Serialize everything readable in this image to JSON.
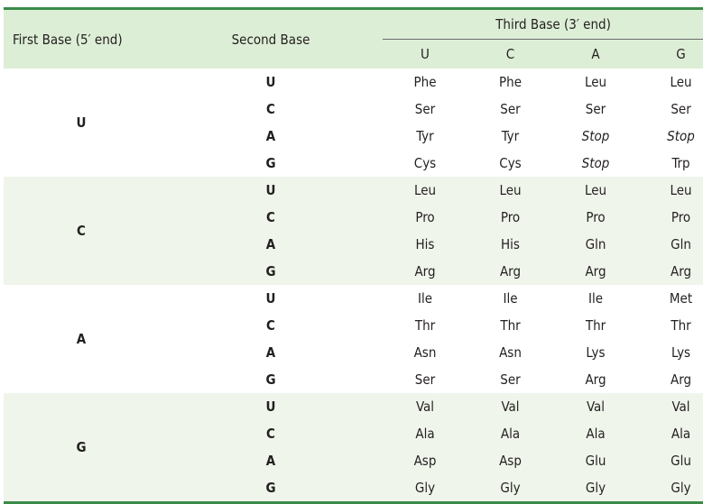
{
  "header": {
    "first_base": "First Base (5′ end)",
    "second_base": "Second Base",
    "third_base": "Third Base (3′ end)",
    "third_columns": [
      "U",
      "C",
      "A",
      "G"
    ]
  },
  "groups": [
    {
      "first": "U",
      "rows": [
        {
          "second": "U",
          "cells": [
            "Phe",
            "Phe",
            "Leu",
            "Leu"
          ]
        },
        {
          "second": "C",
          "cells": [
            "Ser",
            "Ser",
            "Ser",
            "Ser"
          ]
        },
        {
          "second": "A",
          "cells": [
            "Tyr",
            "Tyr",
            "Stop",
            "Stop"
          ]
        },
        {
          "second": "G",
          "cells": [
            "Cys",
            "Cys",
            "Stop",
            "Trp"
          ]
        }
      ]
    },
    {
      "first": "C",
      "rows": [
        {
          "second": "U",
          "cells": [
            "Leu",
            "Leu",
            "Leu",
            "Leu"
          ]
        },
        {
          "second": "C",
          "cells": [
            "Pro",
            "Pro",
            "Pro",
            "Pro"
          ]
        },
        {
          "second": "A",
          "cells": [
            "His",
            "His",
            "Gln",
            "Gln"
          ]
        },
        {
          "second": "G",
          "cells": [
            "Arg",
            "Arg",
            "Arg",
            "Arg"
          ]
        }
      ]
    },
    {
      "first": "A",
      "rows": [
        {
          "second": "U",
          "cells": [
            "Ile",
            "Ile",
            "Ile",
            "Met"
          ]
        },
        {
          "second": "C",
          "cells": [
            "Thr",
            "Thr",
            "Thr",
            "Thr"
          ]
        },
        {
          "second": "A",
          "cells": [
            "Asn",
            "Asn",
            "Lys",
            "Lys"
          ]
        },
        {
          "second": "G",
          "cells": [
            "Ser",
            "Ser",
            "Arg",
            "Arg"
          ]
        }
      ]
    },
    {
      "first": "G",
      "rows": [
        {
          "second": "U",
          "cells": [
            "Val",
            "Val",
            "Val",
            "Val"
          ]
        },
        {
          "second": "C",
          "cells": [
            "Ala",
            "Ala",
            "Ala",
            "Ala"
          ]
        },
        {
          "second": "A",
          "cells": [
            "Asp",
            "Asp",
            "Glu",
            "Glu"
          ]
        },
        {
          "second": "G",
          "cells": [
            "Gly",
            "Gly",
            "Gly",
            "Gly"
          ]
        }
      ]
    }
  ],
  "colors": {
    "header_bg": "#ddeed6",
    "rule": "#3a8b48",
    "shade": "#f0f5ec"
  }
}
